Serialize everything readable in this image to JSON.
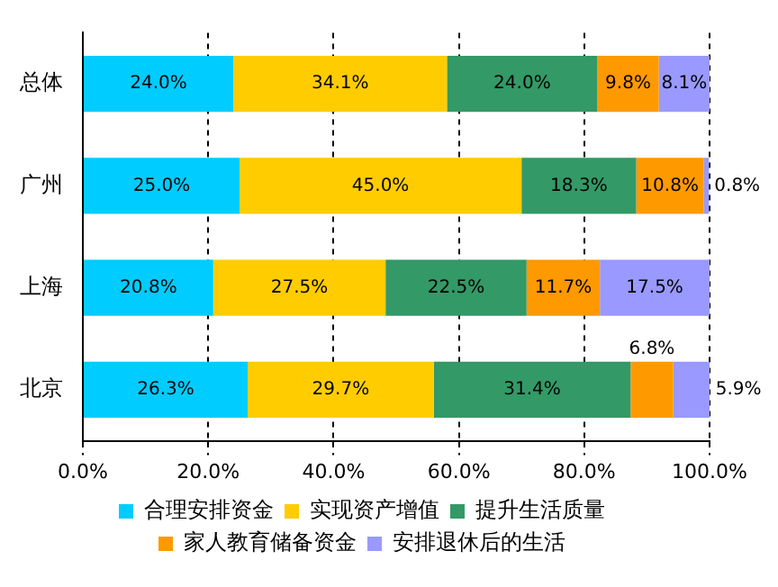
{
  "chart_data": {
    "type": "bar",
    "orientation": "horizontal",
    "stacked": true,
    "categories": [
      "总体",
      "广州",
      "上海",
      "北京"
    ],
    "series": [
      {
        "name": "合理安排资金",
        "color": "#00ccff",
        "values": [
          24.0,
          25.0,
          20.8,
          26.3
        ],
        "value_labels": [
          "24.0%",
          "25.0%",
          "20.8%",
          "26.3%"
        ]
      },
      {
        "name": "实现资产增值",
        "color": "#ffcc00",
        "values": [
          34.1,
          45.0,
          27.5,
          29.7
        ],
        "value_labels": [
          "34.1%",
          "45.0%",
          "27.5%",
          "29.7%"
        ]
      },
      {
        "name": "提升生活质量",
        "color": "#339966",
        "values": [
          24.0,
          18.3,
          22.5,
          31.4
        ],
        "value_labels": [
          "24.0%",
          "18.3%",
          "22.5%",
          "31.4%"
        ]
      },
      {
        "name": "家人教育储备资金",
        "color": "#ff9900",
        "values": [
          9.8,
          10.8,
          11.7,
          6.8
        ],
        "value_labels": [
          "9.8%",
          "10.8%",
          "11.7%",
          "6.8%"
        ]
      },
      {
        "name": "安排退休后的生活",
        "color": "#9999ff",
        "values": [
          8.1,
          0.8,
          17.5,
          5.9
        ],
        "value_labels": [
          "8.1%",
          "0.8%",
          "17.5%",
          "5.9%"
        ]
      }
    ],
    "xlim": [
      0,
      100
    ],
    "xticks": [
      {
        "value": 0,
        "label": "0.0%"
      },
      {
        "value": 20,
        "label": "20.0%"
      },
      {
        "value": 40,
        "label": "40.0%"
      },
      {
        "value": 60,
        "label": "60.0%"
      },
      {
        "value": 80,
        "label": "80.0%"
      },
      {
        "value": 100,
        "label": "100.0%"
      }
    ],
    "grid": "x",
    "legend": "bottom"
  }
}
